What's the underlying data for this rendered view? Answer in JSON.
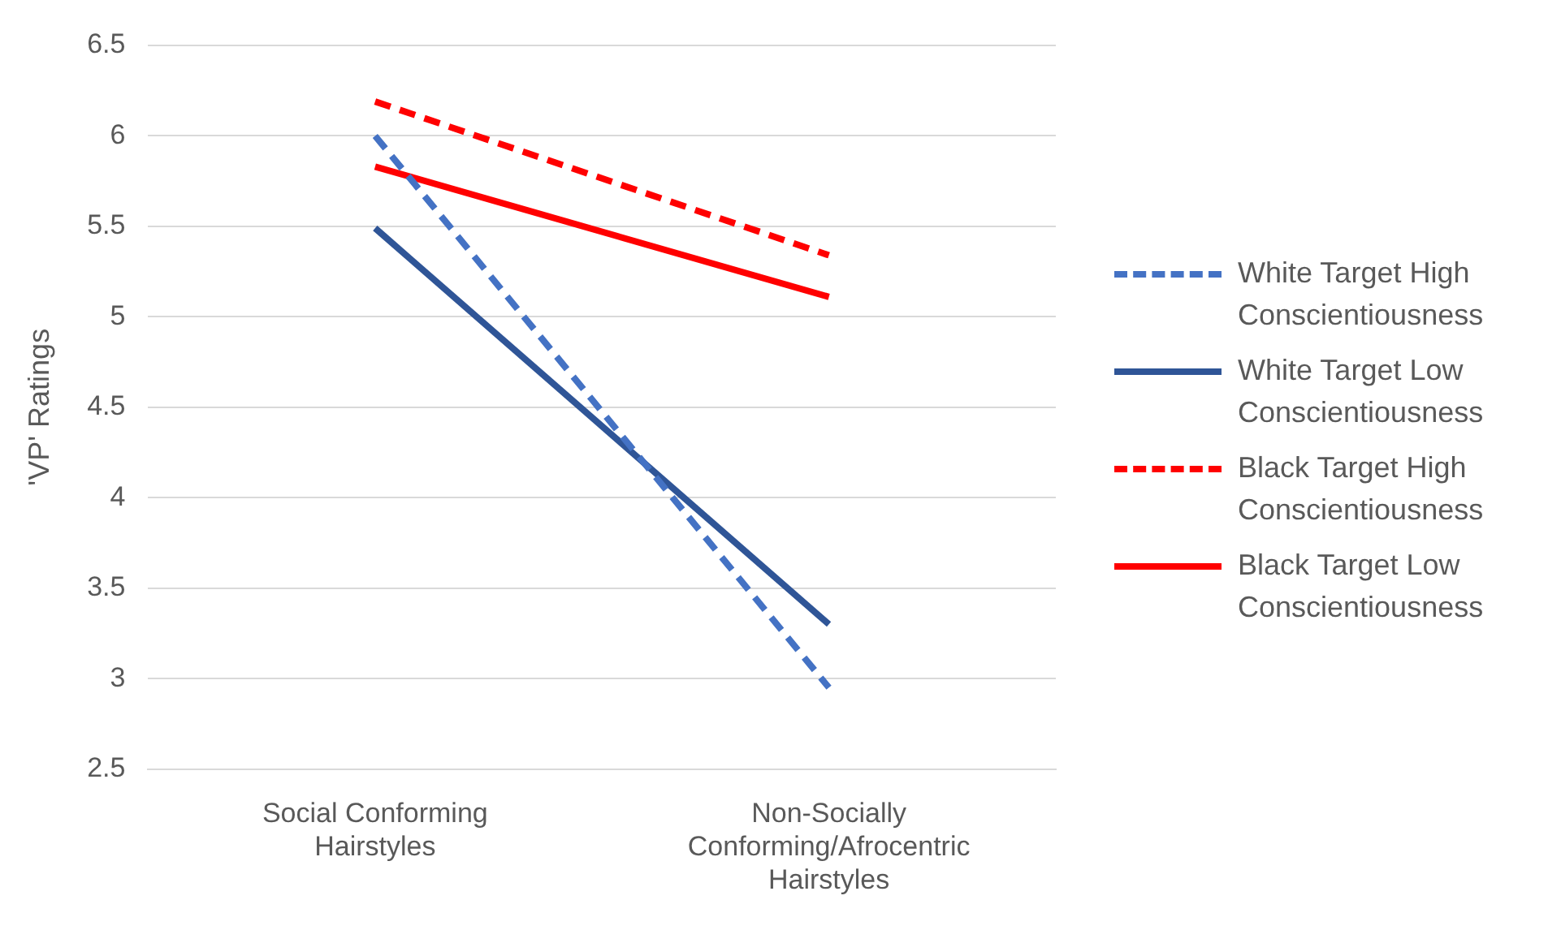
{
  "chart_data": {
    "type": "line",
    "ylabel": "'VP' Ratings",
    "categories": [
      "Social Conforming Hairstyles",
      "Non-Socially Conforming/Afrocentric Hairstyles"
    ],
    "series": [
      {
        "name": "White Target High Conscientiousness",
        "color": "#4472c4",
        "line_style": "dashed",
        "values": [
          6.0,
          2.95
        ]
      },
      {
        "name": "White Target Low Conscientiousness",
        "color": "#2f5597",
        "line_style": "solid",
        "values": [
          5.49,
          3.3
        ]
      },
      {
        "name": "Black Target High Conscientiousness",
        "color": "#ff0000",
        "line_style": "dashed",
        "values": [
          6.19,
          5.34
        ]
      },
      {
        "name": "Black Target Low Conscientiousness",
        "color": "#ff0000",
        "line_style": "solid",
        "values": [
          5.83,
          5.11
        ]
      }
    ],
    "ylim": [
      2.5,
      6.5
    ],
    "yticks": [
      2.5,
      3,
      3.5,
      4,
      4.5,
      5,
      5.5,
      6,
      6.5
    ],
    "grid": "y",
    "legend": "right",
    "marker": "none"
  }
}
